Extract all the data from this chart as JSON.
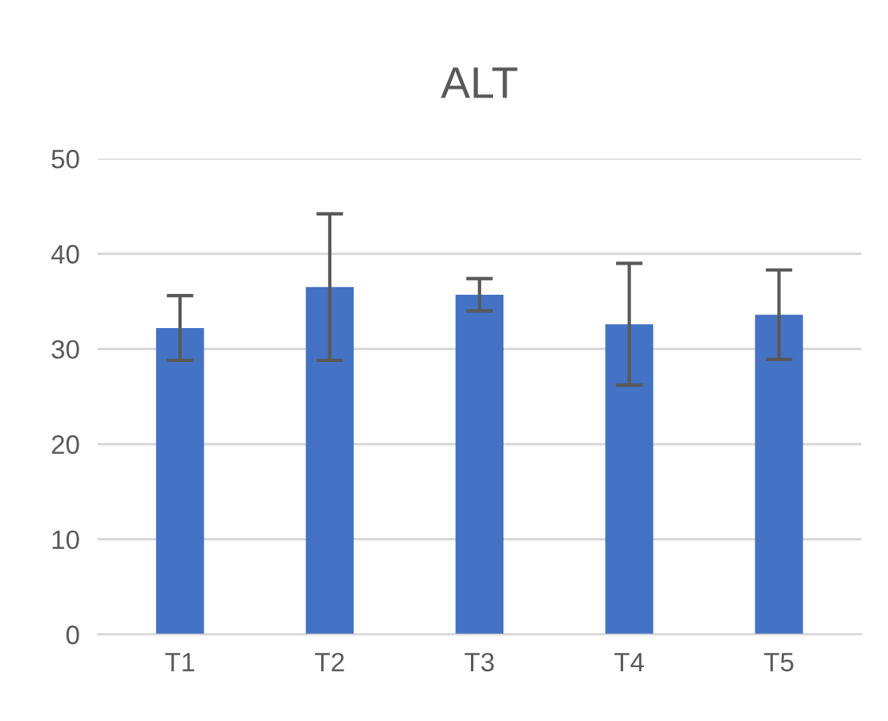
{
  "chart_data": {
    "type": "bar",
    "title": "ALT",
    "categories": [
      "T1",
      "T2",
      "T3",
      "T4",
      "T5"
    ],
    "values": [
      32.2,
      36.5,
      35.7,
      32.6,
      33.6
    ],
    "errors": [
      3.4,
      7.7,
      1.7,
      6.4,
      4.7
    ],
    "color": "#4472c4",
    "ylim": [
      0,
      50
    ],
    "yticks": [
      0,
      10,
      20,
      30,
      40,
      50
    ],
    "grid": "y"
  }
}
